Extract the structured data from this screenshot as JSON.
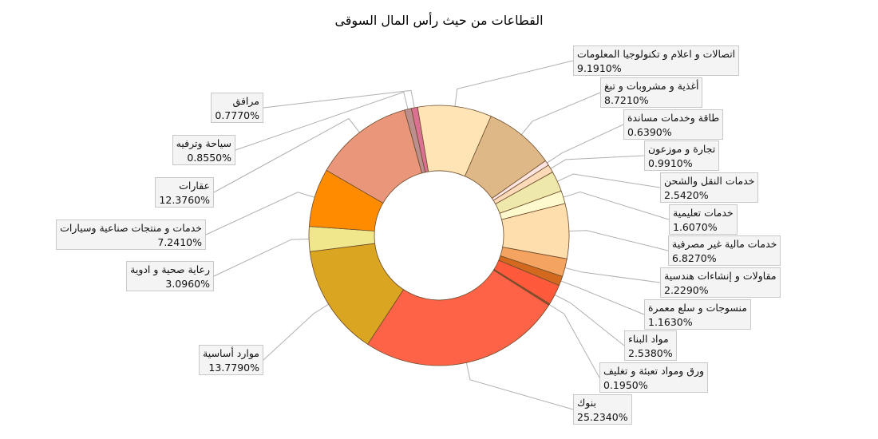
{
  "chart_data": {
    "type": "pie",
    "variant": "donut",
    "title": "القطاعات من حيث رأس المال السوقى",
    "value_unit": "%",
    "slices": [
      {
        "label": "اتصالات و  اعلام و تكنولوجيا المعلومات",
        "value": 9.191,
        "display": "9.1910%",
        "color": "#FFE4B5"
      },
      {
        "label": "أغذية و مشروبات و تبغ",
        "value": 8.721,
        "display": "8.7210%",
        "color": "#DEB887"
      },
      {
        "label": "طاقة وخدمات مساندة",
        "value": 0.639,
        "display": "0.6390%",
        "color": "#FFE4E1"
      },
      {
        "label": "تجارة و موزعون",
        "value": 0.991,
        "display": "0.9910%",
        "color": "#FFDAB9"
      },
      {
        "label": "خدمات النقل والشحن",
        "value": 2.542,
        "display": "2.5420%",
        "color": "#EEE8AA"
      },
      {
        "label": "خدمات تعليمية",
        "value": 1.607,
        "display": "1.6070%",
        "color": "#FFFACD"
      },
      {
        "label": "خدمات مالية غير مصرفية",
        "value": 6.827,
        "display": "6.8270%",
        "color": "#FFDEAD"
      },
      {
        "label": "مقاولات و إنشاءات هندسية",
        "value": 2.229,
        "display": "2.2290%",
        "color": "#F4A460"
      },
      {
        "label": "منسوجات و سلع معمرة",
        "value": 1.163,
        "display": "1.1630%",
        "color": "#D2691E"
      },
      {
        "label": "مواد البناء",
        "value": 2.538,
        "display": "2.5380%",
        "color": "#FF5A3C"
      },
      {
        "label": "ورق ومواد تعبئة و تغليف",
        "value": 0.195,
        "display": "0.1950%",
        "color": "#A0522D"
      },
      {
        "label": "بنوك",
        "value": 25.234,
        "display": "25.2340%",
        "color": "#FF6347"
      },
      {
        "label": "موارد أساسية",
        "value": 13.779,
        "display": "13.7790%",
        "color": "#DAA520"
      },
      {
        "label": "رعاية صحية و ادوية",
        "value": 3.096,
        "display": "3.0960%",
        "color": "#F0E68C"
      },
      {
        "label": "خدمات و منتجات صناعية وسيارات",
        "value": 7.241,
        "display": "7.2410%",
        "color": "#FF8C00"
      },
      {
        "label": "عقارات",
        "value": 12.376,
        "display": "12.3760%",
        "color": "#E9967A"
      },
      {
        "label": "سياحة وترفيه",
        "value": 0.855,
        "display": "0.8550%",
        "color": "#BC8F8F"
      },
      {
        "label": "مرافق",
        "value": 0.777,
        "display": "0.7770%",
        "color": "#DB7093"
      }
    ],
    "legend": "none",
    "data_labels": "outside-with-leader-lines"
  }
}
